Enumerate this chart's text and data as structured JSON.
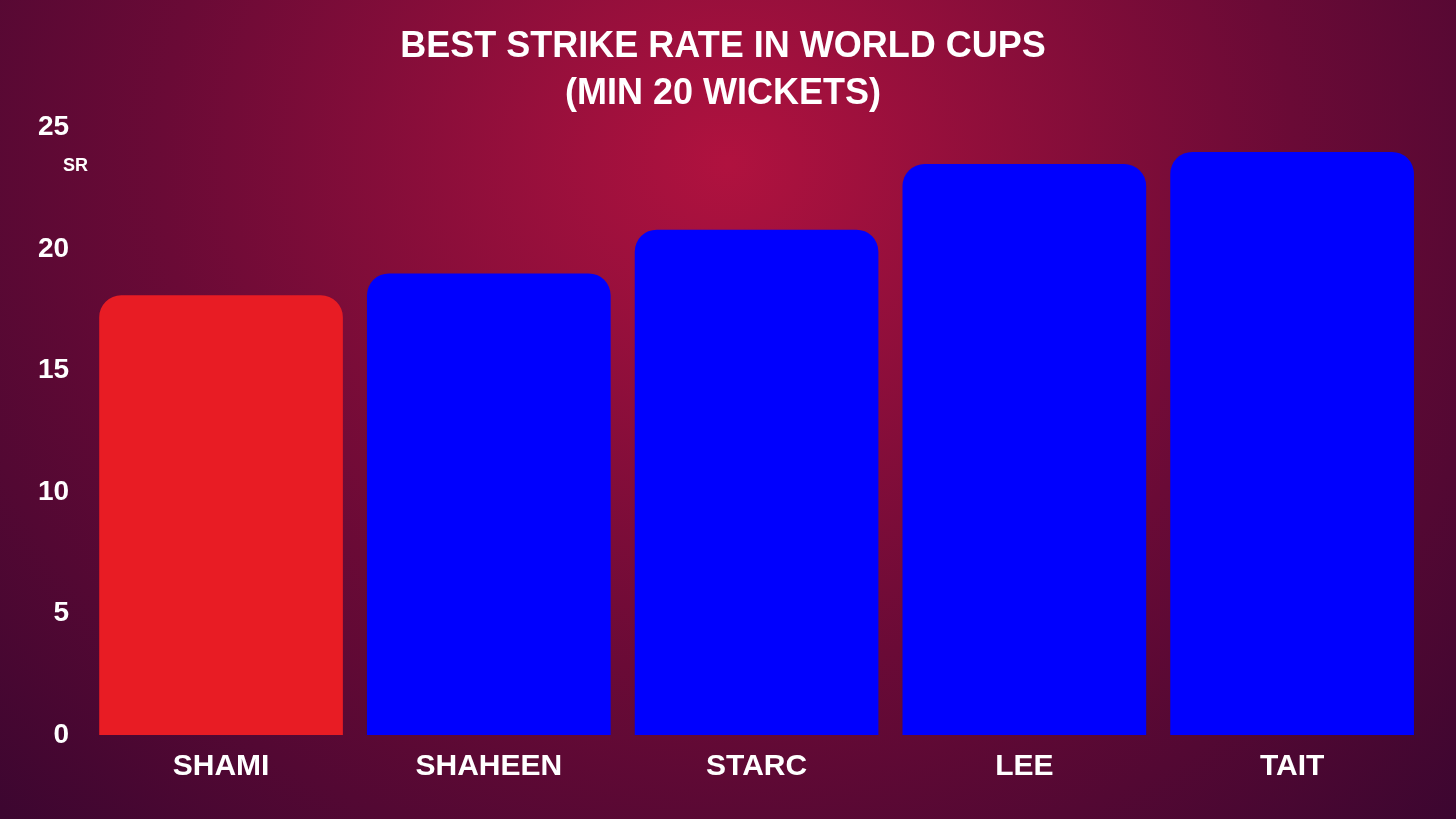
{
  "chart_data": {
    "type": "bar",
    "title": "BEST STRIKE RATE IN WORLD CUPS\n(MIN 20 WICKETS)",
    "ylabel": "SR",
    "categories": [
      "SHAMI",
      "SHAHEEN",
      "STARC",
      "LEE",
      "TAIT"
    ],
    "values": [
      18.1,
      19.0,
      20.8,
      23.5,
      24.0
    ],
    "colors": [
      "#e81c24",
      "#0000fe",
      "#0000fe",
      "#0000fe",
      "#0000fe"
    ],
    "ylim": [
      0,
      25
    ],
    "yticks": [
      0,
      5,
      10,
      15,
      20,
      25
    ],
    "grid": false,
    "legend": false
  }
}
